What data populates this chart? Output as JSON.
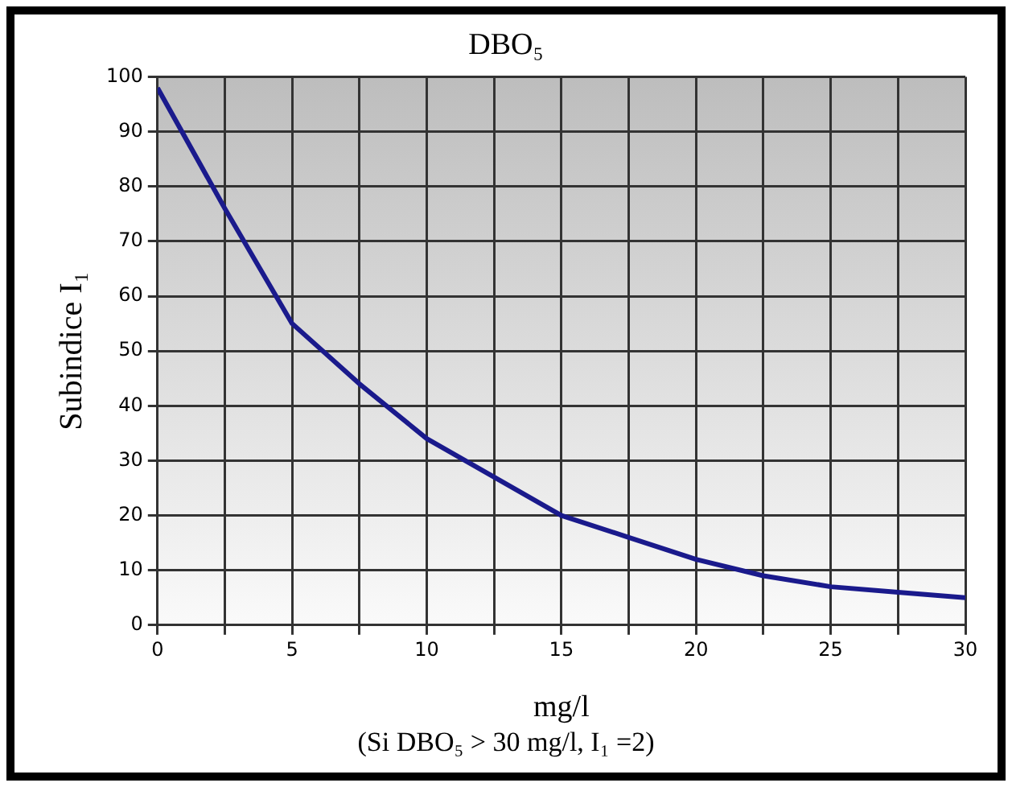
{
  "chart_data": {
    "type": "line",
    "title": "DBO₅",
    "xlabel": "mg/l",
    "ylabel": "Subindice I₁",
    "annotations": [
      "(Si DBO₅ > 30 mg/l, I₁ =2)"
    ],
    "x": [
      0,
      2.5,
      5,
      7.5,
      10,
      12.5,
      15,
      17.5,
      20,
      22.5,
      25,
      27.5,
      30
    ],
    "series": [
      {
        "color": "#1a1a8c",
        "values": [
          98,
          76,
          55,
          44,
          34,
          27,
          20,
          16,
          12,
          9,
          7,
          6,
          5
        ]
      }
    ],
    "xlim": [
      0,
      30
    ],
    "xticks": [
      0,
      {
        "value": 2.5,
        "label": null
      },
      5,
      {
        "value": 7.5,
        "label": null
      },
      10,
      {
        "value": 12.5,
        "label": null
      },
      15,
      {
        "value": 17.5,
        "label": null
      },
      20,
      {
        "value": 22.5,
        "label": null
      },
      25,
      {
        "value": 27.5,
        "label": null
      },
      30
    ],
    "ylim": [
      0,
      100
    ],
    "yticks": [
      0,
      10,
      20,
      30,
      40,
      50,
      60,
      70,
      80,
      90,
      100
    ],
    "grid": true,
    "legend": false,
    "marker": "none",
    "line_style": "solid"
  }
}
